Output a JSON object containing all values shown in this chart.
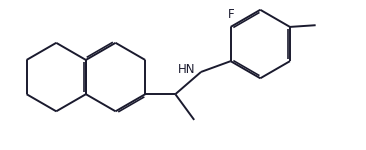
{
  "bg": "#ffffff",
  "lc": "#1a1a2e",
  "lw": 1.4,
  "lw_inner": 1.2,
  "dbo": 0.018,
  "shrink": 0.06,
  "fs": 8.5,
  "ring_r": 0.33,
  "F_text": "F",
  "HN_text": "HN",
  "xlim": [
    0.05,
    3.55
  ],
  "ylim": [
    0.05,
    1.35
  ]
}
